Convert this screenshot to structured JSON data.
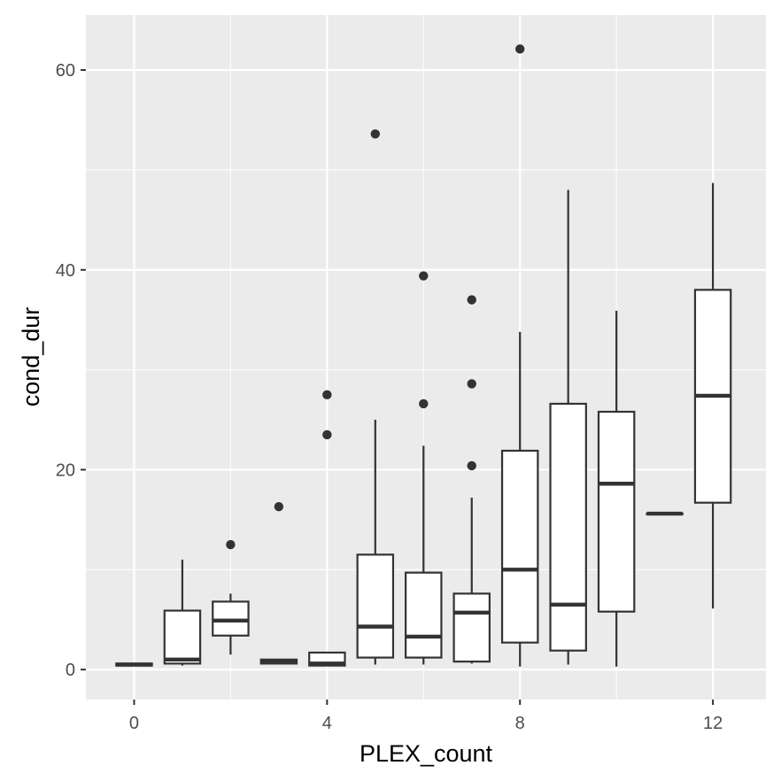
{
  "chart_data": {
    "type": "boxplot",
    "xlabel": "PLEX_count",
    "ylabel": "cond_dur",
    "xlim": [
      -1.0,
      13.1
    ],
    "ylim": [
      -3.0,
      65.5
    ],
    "x_ticks": [
      0,
      4,
      8,
      12
    ],
    "y_ticks": [
      0,
      20,
      40,
      60
    ],
    "grid": true,
    "legend": "none",
    "colors": {
      "panel": "#ebebeb",
      "grid_major": "#ffffff",
      "box_fill": "#ffffff",
      "box_line": "#333333",
      "tick_text": "#4d4d4d",
      "title_text": "#000000"
    },
    "boxes": [
      {
        "x": 0,
        "whisker_low": 0.4,
        "q1": 0.4,
        "median": 0.5,
        "q3": 0.6,
        "whisker_high": 0.6,
        "outliers": []
      },
      {
        "x": 1,
        "whisker_low": 0.4,
        "q1": 0.6,
        "median": 1.0,
        "q3": 5.9,
        "whisker_high": 11.0,
        "outliers": []
      },
      {
        "x": 2,
        "whisker_low": 1.5,
        "q1": 3.4,
        "median": 4.9,
        "q3": 6.8,
        "whisker_high": 7.6,
        "outliers": [
          12.5
        ]
      },
      {
        "x": 3,
        "whisker_low": 0.6,
        "q1": 0.6,
        "median": 0.8,
        "q3": 1.0,
        "whisker_high": 1.0,
        "outliers": [
          16.3
        ]
      },
      {
        "x": 4,
        "whisker_low": 0.4,
        "q1": 0.4,
        "median": 0.6,
        "q3": 1.7,
        "whisker_high": 1.7,
        "outliers": [
          23.5,
          27.5
        ]
      },
      {
        "x": 5,
        "whisker_low": 0.5,
        "q1": 1.2,
        "median": 4.3,
        "q3": 11.5,
        "whisker_high": 25.0,
        "outliers": [
          53.6
        ]
      },
      {
        "x": 6,
        "whisker_low": 0.5,
        "q1": 1.2,
        "median": 3.3,
        "q3": 9.7,
        "whisker_high": 22.4,
        "outliers": [
          26.6,
          39.4
        ]
      },
      {
        "x": 7,
        "whisker_low": 0.6,
        "q1": 0.8,
        "median": 5.7,
        "q3": 7.6,
        "whisker_high": 17.2,
        "outliers": [
          20.4,
          28.6,
          37.0
        ]
      },
      {
        "x": 8,
        "whisker_low": 0.3,
        "q1": 2.7,
        "median": 10.0,
        "q3": 21.9,
        "whisker_high": 33.8,
        "outliers": [
          62.1
        ]
      },
      {
        "x": 9,
        "whisker_low": 0.5,
        "q1": 1.9,
        "median": 6.5,
        "q3": 26.6,
        "whisker_high": 48.0,
        "outliers": []
      },
      {
        "x": 10,
        "whisker_low": 0.3,
        "q1": 5.8,
        "median": 18.6,
        "q3": 25.8,
        "whisker_high": 35.9,
        "outliers": []
      },
      {
        "x": 11,
        "whisker_low": 15.6,
        "q1": 15.6,
        "median": 15.6,
        "q3": 15.6,
        "whisker_high": 15.6,
        "outliers": []
      },
      {
        "x": 12,
        "whisker_low": 6.1,
        "q1": 16.7,
        "median": 27.4,
        "q3": 38.0,
        "whisker_high": 48.7,
        "outliers": []
      }
    ]
  }
}
